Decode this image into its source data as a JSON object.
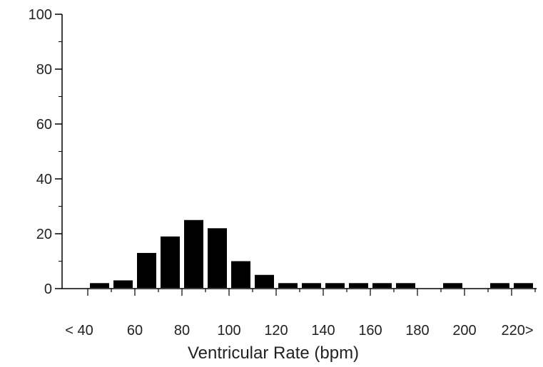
{
  "chart_data": {
    "type": "bar",
    "title": "",
    "xlabel": "Ventricular Rate (bpm)",
    "ylabel": "",
    "ylim": [
      0,
      100
    ],
    "yticks": [
      0,
      20,
      40,
      60,
      80,
      100
    ],
    "x_tick_labels": [
      "< 40",
      "60",
      "80",
      "100",
      "120",
      "140",
      "160",
      "180",
      "200",
      "220>"
    ],
    "categories": [
      "40-50",
      "50-60",
      "60-70",
      "70-80",
      "80-90",
      "90-100",
      "100-110",
      "110-120",
      "120-130",
      "130-140",
      "140-150",
      "150-160",
      "160-170",
      "170-180",
      "180-190",
      "190-200",
      "200-210",
      "210-220",
      "220+"
    ],
    "values": [
      2,
      3,
      13,
      19,
      25,
      22,
      10,
      5,
      2,
      2,
      2,
      2,
      2,
      2,
      0,
      2,
      0,
      2,
      2
    ],
    "bar_color": "#000000",
    "grid": false,
    "legend": "none"
  }
}
